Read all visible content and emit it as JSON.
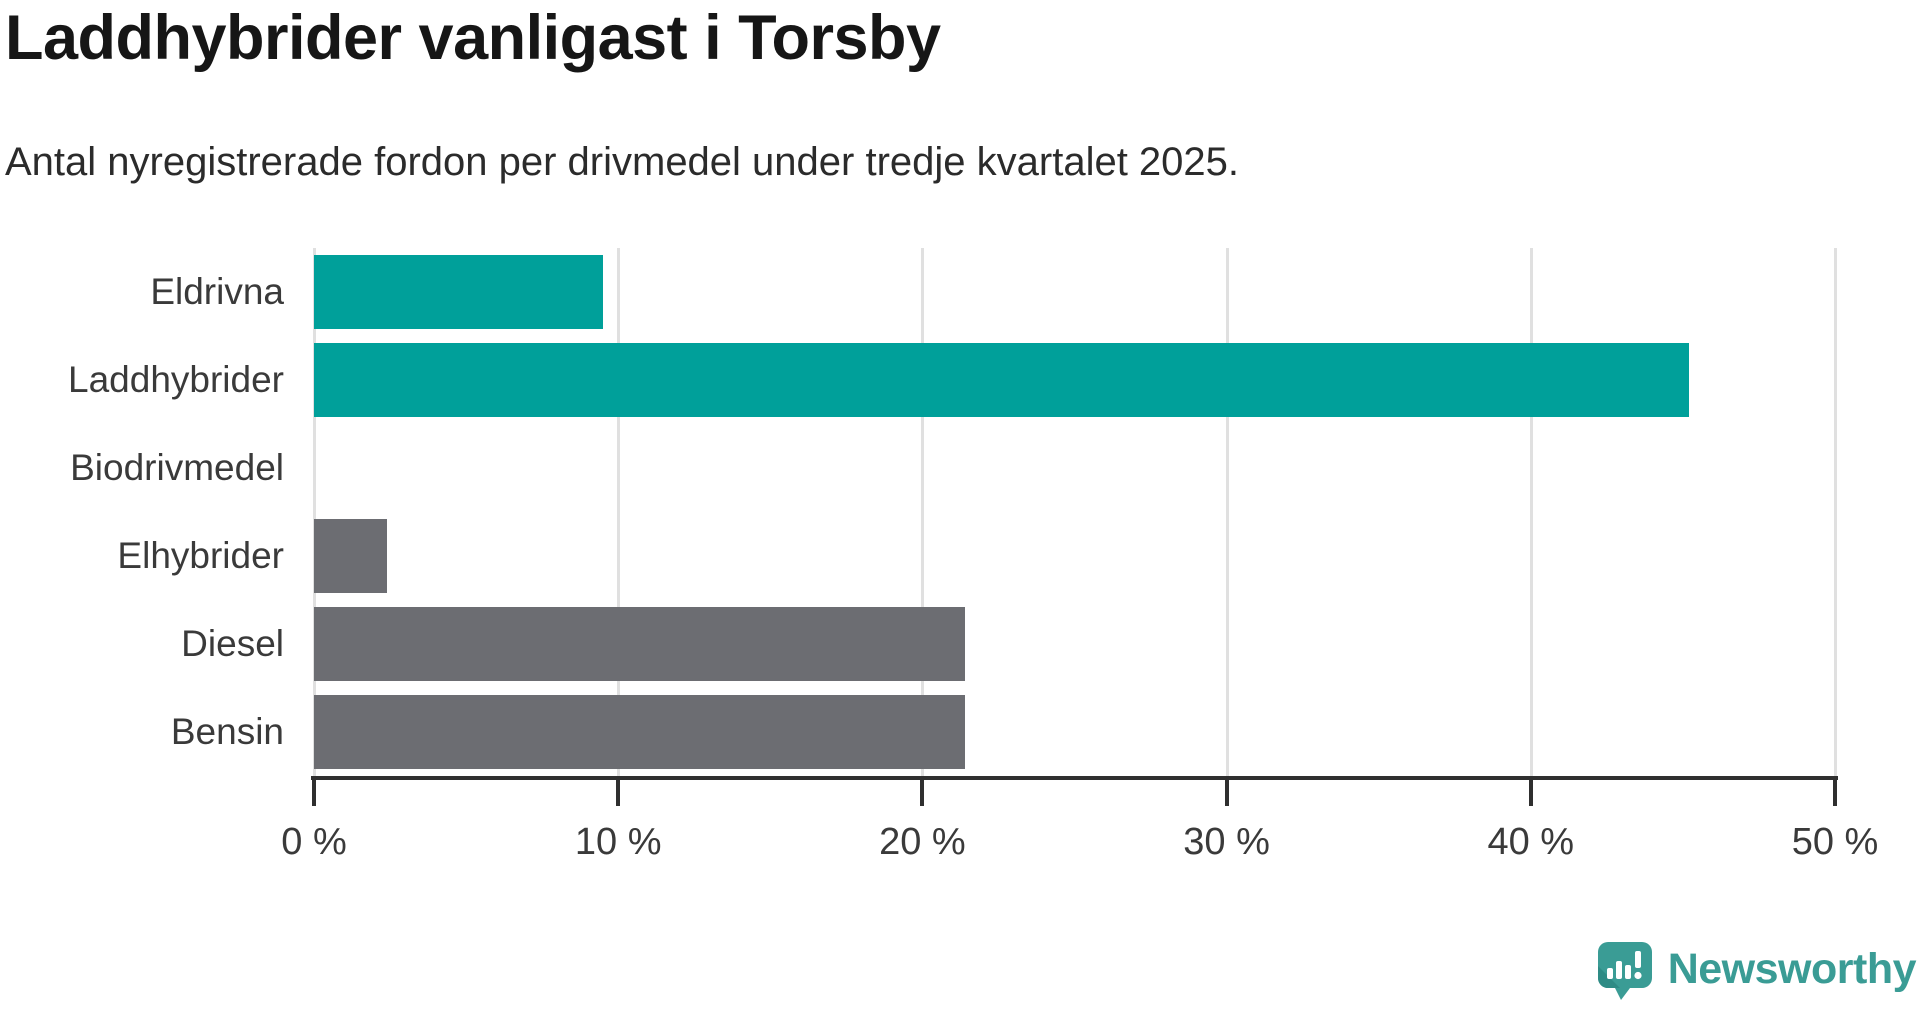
{
  "header": {
    "title": "Laddhybrider vanligast i Torsby",
    "subtitle": "Antal nyregistrerade fordon per drivmedel under tredje kvartalet 2025."
  },
  "chart_data": {
    "type": "bar",
    "orientation": "horizontal",
    "title": "Laddhybrider vanligast i Torsby",
    "subtitle": "Antal nyregistrerade fordon per drivmedel under tredje kvartalet 2025.",
    "categories": [
      "Eldrivna",
      "Laddhybrider",
      "Biodrivmedel",
      "Elhybrider",
      "Diesel",
      "Bensin"
    ],
    "values": [
      9.5,
      45.2,
      0,
      2.4,
      21.4,
      21.4
    ],
    "unit": "%",
    "bar_colors": [
      "#00a09a",
      "#00a09a",
      "#6c6d72",
      "#6c6d72",
      "#6c6d72",
      "#6c6d72"
    ],
    "xlim": [
      0,
      50
    ],
    "x_ticks": [
      0,
      10,
      20,
      30,
      40,
      50
    ],
    "x_tick_labels": [
      "0 %",
      "10 %",
      "20 %",
      "30 %",
      "40 %",
      "50 %"
    ],
    "grid": "vertical-only",
    "legend": "none"
  },
  "branding": {
    "logo_text": "Newsworthy"
  },
  "colors": {
    "highlight_teal": "#00a09a",
    "neutral_gray": "#6c6d72",
    "gridline": "#e0e0e0",
    "axis": "#2f2f2f",
    "title_text": "#161616",
    "body_text": "#3a3a3a",
    "brand_teal": "#3a9c95",
    "brand_teal_dark": "#2e8b85"
  }
}
